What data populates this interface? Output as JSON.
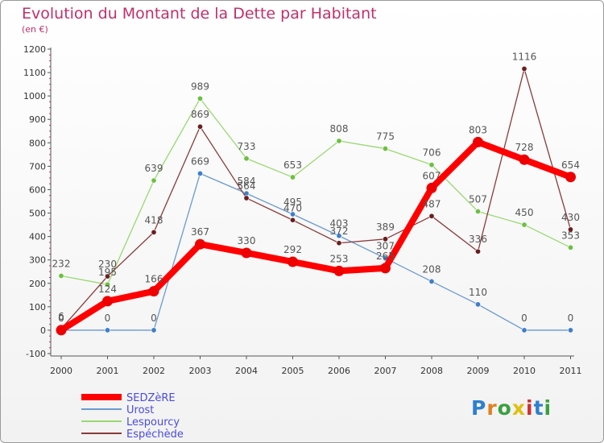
{
  "title": "Evolution du Montant de la Dette par Habitant",
  "subtitle": "(en €)",
  "logo": {
    "letters": [
      "P",
      "r",
      "o",
      "x",
      "i",
      "t",
      "i"
    ],
    "colors": [
      "#2d7fd0",
      "#e08020",
      "#3aa040",
      "#e0c010",
      "#d03030",
      "#2d7fd0",
      "#3aa040"
    ]
  },
  "chart_data": {
    "type": "line",
    "title": "Evolution du Montant de la Dette par Habitant",
    "ylabel": "(en €)",
    "xlabel": "",
    "categories": [
      "2000",
      "2001",
      "2002",
      "2003",
      "2004",
      "2005",
      "2006",
      "2007",
      "2008",
      "2009",
      "2010",
      "2011"
    ],
    "ylim": [
      -100,
      1200
    ],
    "yticks": [
      -100,
      0,
      100,
      200,
      300,
      400,
      500,
      600,
      700,
      800,
      900,
      1000,
      1100,
      1200
    ],
    "yticks_labels": [
      "-100",
      "0",
      "100",
      "200",
      "300",
      "400",
      "500",
      "600",
      "700",
      "800",
      "900",
      "1000",
      "1100",
      "1200"
    ],
    "grid": false,
    "legend_position": "bottom-left",
    "series": [
      {
        "name": "Urost",
        "color": "#6a9ad0",
        "marker": "#3f7fc8",
        "values": [
          0,
          0,
          0,
          669,
          584,
          495,
          403,
          307,
          208,
          110,
          0,
          0
        ],
        "labels": [
          "0",
          "0",
          "0",
          "669",
          "584",
          "495",
          "403",
          "307",
          "208",
          "110",
          "0",
          "0"
        ]
      },
      {
        "name": "Lespourcy",
        "color": "#9ad870",
        "marker": "#6cc040",
        "values": [
          232,
          195,
          639,
          989,
          733,
          653,
          808,
          775,
          706,
          507,
          450,
          353
        ],
        "labels": [
          "232",
          "195",
          "639",
          "989",
          "733",
          "653",
          "808",
          "775",
          "706",
          "507",
          "450",
          "353"
        ]
      },
      {
        "name": "Espéchède",
        "color": "#8a3a3a",
        "marker": "#6a1f1f",
        "values": [
          6,
          230,
          418,
          869,
          564,
          470,
          372,
          389,
          487,
          336,
          1116,
          430
        ],
        "labels": [
          "6",
          "230",
          "418",
          "869",
          "564",
          "470",
          "372",
          "389",
          "487",
          "336",
          "1116",
          "430"
        ]
      },
      {
        "name": "SEDZèRE",
        "color": "#ff0000",
        "marker": "#ee0000",
        "values": [
          0,
          124,
          166,
          367,
          330,
          292,
          253,
          265,
          607,
          803,
          728,
          654
        ],
        "labels": [
          "0",
          "124",
          "166",
          "367",
          "330",
          "292",
          "253",
          "265",
          "607",
          "803",
          "728",
          "654"
        ]
      }
    ]
  }
}
